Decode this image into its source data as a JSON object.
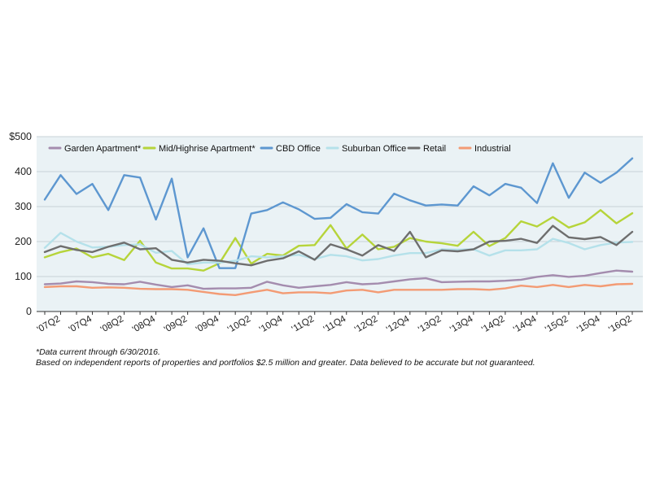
{
  "chart_data": {
    "type": "line",
    "ylim": [
      0,
      500
    ],
    "yticks": [
      0,
      100,
      200,
      300,
      400,
      500
    ],
    "ytick_labels": [
      "0",
      "100",
      "200",
      "300",
      "400",
      "$500"
    ],
    "grid": true,
    "legend_position": "top",
    "categories": [
      "07Q1",
      "07Q2",
      "07Q3",
      "07Q4",
      "08Q1",
      "08Q2",
      "08Q3",
      "08Q4",
      "09Q1",
      "09Q2",
      "09Q3",
      "09Q4",
      "10Q1",
      "10Q2",
      "10Q3",
      "10Q4",
      "11Q1",
      "11Q2",
      "11Q3",
      "11Q4",
      "12Q1",
      "12Q2",
      "12Q3",
      "12Q4",
      "13Q1",
      "13Q2",
      "13Q3",
      "13Q4",
      "14Q1",
      "14Q2",
      "14Q3",
      "14Q4",
      "15Q1",
      "15Q2",
      "15Q3",
      "15Q4",
      "16Q1",
      "16Q2"
    ],
    "xtick_labels": [
      "'07Q2",
      "'07Q4",
      "'08Q2",
      "'08Q4",
      "'09Q2",
      "'09Q4",
      "'10Q2",
      "'10Q4",
      "'11Q2",
      "'11Q4",
      "'12Q2",
      "'12Q4",
      "'13Q2",
      "'13Q4",
      "'14Q2",
      "'14Q4",
      "'15Q2",
      "'15Q4",
      "'16Q2"
    ],
    "series": [
      {
        "name": "Garden Apartment*",
        "color": "#a48cae",
        "values": [
          78,
          80,
          86,
          84,
          79,
          78,
          85,
          77,
          70,
          75,
          65,
          66,
          66,
          68,
          85,
          75,
          68,
          72,
          76,
          84,
          78,
          80,
          86,
          92,
          95,
          84,
          85,
          86,
          86,
          88,
          91,
          99,
          104,
          99,
          102,
          110,
          117,
          114
        ]
      },
      {
        "name": "Mid/Highrise Apartment*",
        "color": "#b6d43a",
        "values": [
          155,
          170,
          180,
          155,
          165,
          147,
          202,
          140,
          123,
          123,
          117,
          138,
          210,
          137,
          165,
          160,
          188,
          190,
          247,
          180,
          220,
          178,
          185,
          210,
          200,
          195,
          188,
          228,
          187,
          210,
          258,
          243,
          270,
          240,
          255,
          290,
          252,
          281
        ]
      },
      {
        "name": "CBD Office",
        "color": "#5d97d0",
        "values": [
          320,
          390,
          336,
          365,
          290,
          390,
          383,
          263,
          380,
          155,
          238,
          124,
          124,
          280,
          290,
          312,
          292,
          265,
          268,
          307,
          284,
          280,
          337,
          318,
          303,
          306,
          303,
          358,
          332,
          365,
          354,
          310,
          424,
          325,
          397,
          368,
          397,
          438
        ]
      },
      {
        "name": "Suburban Office",
        "color": "#b5e1ea",
        "values": [
          182,
          225,
          200,
          183,
          185,
          190,
          192,
          168,
          173,
          135,
          140,
          140,
          145,
          158,
          155,
          158,
          162,
          150,
          162,
          158,
          146,
          150,
          160,
          167,
          167,
          178,
          177,
          178,
          160,
          175,
          175,
          178,
          208,
          196,
          178,
          190,
          197,
          199
        ]
      },
      {
        "name": "Retail",
        "color": "#6e6e6e",
        "values": [
          170,
          187,
          176,
          170,
          185,
          197,
          178,
          181,
          148,
          140,
          148,
          145,
          138,
          132,
          145,
          152,
          172,
          148,
          192,
          178,
          160,
          190,
          173,
          228,
          155,
          175,
          172,
          178,
          200,
          202,
          208,
          196,
          245,
          212,
          207,
          213,
          190,
          228
        ]
      },
      {
        "name": "Industrial",
        "color": "#f39b74",
        "values": [
          70,
          72,
          72,
          68,
          69,
          68,
          65,
          64,
          64,
          62,
          56,
          50,
          47,
          55,
          62,
          52,
          55,
          55,
          52,
          60,
          62,
          55,
          62,
          62,
          62,
          62,
          64,
          64,
          62,
          66,
          74,
          70,
          76,
          70,
          76,
          72,
          78,
          79
        ]
      }
    ]
  },
  "footnotes": {
    "line1": "*Data current through 6/30/2016.",
    "line2": "Based on independent reports of properties and portfolios $2.5 million and greater. Data believed to be accurate but not guaranteed."
  }
}
